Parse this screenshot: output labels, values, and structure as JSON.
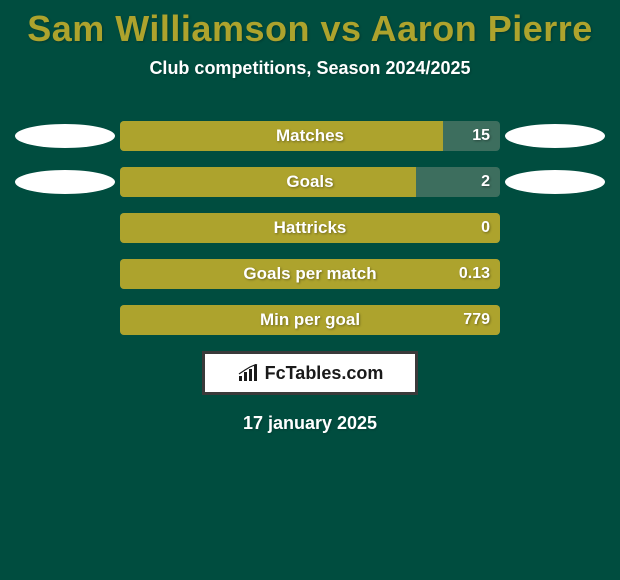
{
  "colors": {
    "background": "#004d3f",
    "title": "#ada32d",
    "subtitle": "#ffffff",
    "bar_bg": "#3d6e5e",
    "bar_fill": "#ada32d",
    "bar_text": "#ffffff",
    "ellipse": "#ffffff",
    "date_text": "#ffffff",
    "logo_border": "#3a3a3a"
  },
  "typography": {
    "title_fontsize": 36,
    "subtitle_fontsize": 18,
    "bar_label_fontsize": 17,
    "bar_value_fontsize": 16,
    "date_fontsize": 18
  },
  "title": "Sam Williamson vs Aaron Pierre",
  "subtitle": "Club competitions, Season 2024/2025",
  "date": "17 january 2025",
  "logo_text": "FcTables.com",
  "stats": [
    {
      "label": "Matches",
      "value": "15",
      "fill_pct": 85,
      "left_ellipse": true,
      "right_ellipse": true
    },
    {
      "label": "Goals",
      "value": "2",
      "fill_pct": 78,
      "left_ellipse": true,
      "right_ellipse": true
    },
    {
      "label": "Hattricks",
      "value": "0",
      "fill_pct": 100,
      "left_ellipse": false,
      "right_ellipse": false
    },
    {
      "label": "Goals per match",
      "value": "0.13",
      "fill_pct": 100,
      "left_ellipse": false,
      "right_ellipse": false
    },
    {
      "label": "Min per goal",
      "value": "779",
      "fill_pct": 100,
      "left_ellipse": false,
      "right_ellipse": false
    }
  ]
}
